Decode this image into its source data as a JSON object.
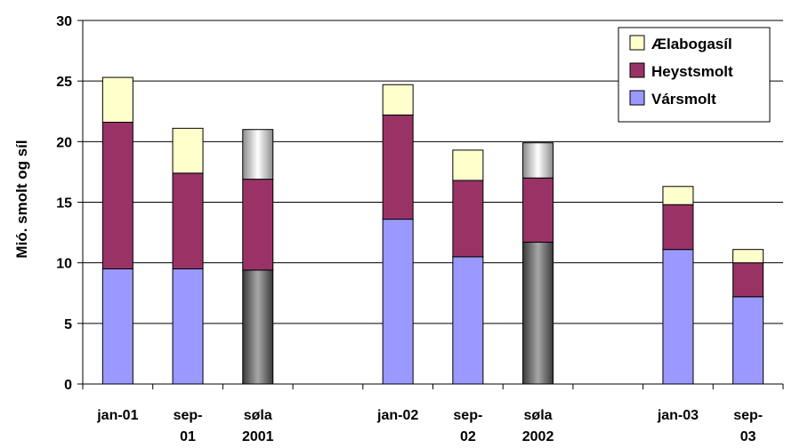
{
  "chart_data": {
    "type": "bar",
    "stacked": true,
    "ylabel": "Mió. smolt og síl",
    "xlabel": "",
    "ylim": [
      0,
      30
    ],
    "yticks": [
      0,
      5,
      10,
      15,
      20,
      25,
      30
    ],
    "grid": true,
    "legend_position": "top-right",
    "categories": [
      {
        "line1": "jan-01",
        "line2": ""
      },
      {
        "line1": "sep-",
        "line2": "01"
      },
      {
        "line1": "søla",
        "line2": "2001"
      },
      {
        "line1": "",
        "line2": ""
      },
      {
        "line1": "jan-02",
        "line2": ""
      },
      {
        "line1": "sep-",
        "line2": "02"
      },
      {
        "line1": "søla",
        "line2": "2002"
      },
      {
        "line1": "",
        "line2": ""
      },
      {
        "line1": "jan-03",
        "line2": ""
      },
      {
        "line1": "sep-",
        "line2": "03"
      }
    ],
    "series": [
      {
        "name": "Vársmolt",
        "color": "#9999ff",
        "values": [
          9.5,
          9.5,
          9.4,
          null,
          13.6,
          10.5,
          11.7,
          null,
          11.1,
          7.2
        ]
      },
      {
        "name": "Heystsmolt",
        "color": "#993366",
        "values": [
          12.1,
          7.9,
          7.5,
          null,
          8.6,
          6.3,
          5.3,
          null,
          3.7,
          2.8
        ]
      },
      {
        "name": "Ælabogasíl",
        "color": "#ffffcc",
        "values": [
          3.7,
          3.7,
          4.1,
          null,
          2.5,
          2.5,
          2.9,
          null,
          1.5,
          1.1
        ]
      }
    ],
    "highlighted_categories": [
      2,
      6
    ],
    "highlight_colors": [
      "#555555",
      "#c0c0c0"
    ]
  }
}
